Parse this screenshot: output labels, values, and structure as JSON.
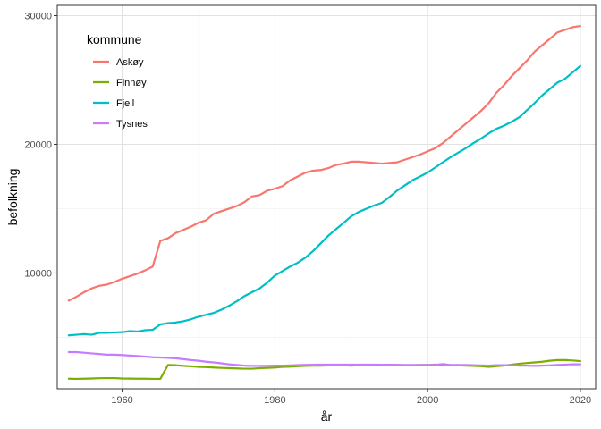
{
  "chart_data": {
    "type": "line",
    "title": "",
    "xlabel": "år",
    "ylabel": "befolkning",
    "xlim": [
      1951.5,
      2022.0
    ],
    "ylim": [
      1000,
      30800
    ],
    "x_ticks": [
      1960,
      1980,
      2000,
      2020
    ],
    "x_tick_labels": [
      "1960",
      "1980",
      "2000",
      "2020"
    ],
    "y_ticks": [
      10000,
      20000,
      30000
    ],
    "y_tick_labels": [
      "10000",
      "20000",
      "30000"
    ],
    "grid": true,
    "legend": {
      "title": "kommune",
      "placement": "top-left (inside)"
    },
    "series": [
      {
        "name": "Askøy",
        "color": "#F8766D",
        "x": [
          1953,
          1954,
          1955,
          1956,
          1957,
          1958,
          1959,
          1960,
          1961,
          1962,
          1963,
          1964,
          1965,
          1966,
          1967,
          1968,
          1969,
          1970,
          1971,
          1972,
          1973,
          1974,
          1975,
          1976,
          1977,
          1978,
          1979,
          1980,
          1981,
          1982,
          1983,
          1984,
          1985,
          1986,
          1987,
          1988,
          1989,
          1990,
          1991,
          1992,
          1993,
          1994,
          1995,
          1996,
          1997,
          1998,
          1999,
          2000,
          2001,
          2002,
          2003,
          2004,
          2005,
          2006,
          2007,
          2008,
          2009,
          2010,
          2011,
          2012,
          2013,
          2014,
          2015,
          2016,
          2017,
          2018,
          2019,
          2020
        ],
        "values": [
          7850,
          8150,
          8500,
          8800,
          9000,
          9100,
          9300,
          9550,
          9750,
          9950,
          10200,
          10500,
          12500,
          12700,
          13100,
          13350,
          13600,
          13900,
          14100,
          14600,
          14800,
          15000,
          15200,
          15500,
          15950,
          16050,
          16400,
          16550,
          16750,
          17200,
          17500,
          17800,
          17950,
          18000,
          18150,
          18400,
          18500,
          18650,
          18650,
          18600,
          18550,
          18500,
          18550,
          18600,
          18800,
          19000,
          19200,
          19450,
          19700,
          20100,
          20600,
          21100,
          21600,
          22100,
          22600,
          23200,
          24000,
          24600,
          25300,
          25900,
          26500,
          27200,
          27700,
          28200,
          28700,
          28900,
          29100,
          29200
        ]
      },
      {
        "name": "Finnøy",
        "color": "#7CAE00",
        "x": [
          1953,
          1954,
          1955,
          1956,
          1957,
          1958,
          1959,
          1960,
          1961,
          1962,
          1963,
          1964,
          1965,
          1966,
          1967,
          1968,
          1969,
          1970,
          1971,
          1972,
          1973,
          1974,
          1975,
          1976,
          1977,
          1978,
          1979,
          1980,
          1981,
          1982,
          1983,
          1984,
          1985,
          1986,
          1987,
          1988,
          1989,
          1990,
          1991,
          1992,
          1993,
          1994,
          1995,
          1996,
          1997,
          1998,
          1999,
          2000,
          2001,
          2002,
          2003,
          2004,
          2005,
          2006,
          2007,
          2008,
          2009,
          2010,
          2011,
          2012,
          2013,
          2014,
          2015,
          2016,
          2017,
          2018,
          2019,
          2020
        ],
        "values": [
          1780,
          1770,
          1780,
          1800,
          1820,
          1830,
          1830,
          1800,
          1790,
          1780,
          1780,
          1770,
          1770,
          2850,
          2830,
          2780,
          2750,
          2700,
          2680,
          2650,
          2620,
          2600,
          2580,
          2560,
          2560,
          2600,
          2620,
          2650,
          2700,
          2720,
          2750,
          2780,
          2800,
          2800,
          2810,
          2820,
          2830,
          2800,
          2830,
          2850,
          2860,
          2860,
          2860,
          2850,
          2830,
          2830,
          2850,
          2850,
          2880,
          2850,
          2830,
          2820,
          2800,
          2780,
          2750,
          2700,
          2750,
          2800,
          2880,
          2950,
          3000,
          3050,
          3100,
          3180,
          3230,
          3230,
          3200,
          3150
        ]
      },
      {
        "name": "Fjell",
        "color": "#00BFC4",
        "x": [
          1953,
          1954,
          1955,
          1956,
          1957,
          1958,
          1959,
          1960,
          1961,
          1962,
          1963,
          1964,
          1965,
          1966,
          1967,
          1968,
          1969,
          1970,
          1971,
          1972,
          1973,
          1974,
          1975,
          1976,
          1977,
          1978,
          1979,
          1980,
          1981,
          1982,
          1983,
          1984,
          1985,
          1986,
          1987,
          1988,
          1989,
          1990,
          1991,
          1992,
          1993,
          1994,
          1995,
          1996,
          1997,
          1998,
          1999,
          2000,
          2001,
          2002,
          2003,
          2004,
          2005,
          2006,
          2007,
          2008,
          2009,
          2010,
          2011,
          2012,
          2013,
          2014,
          2015,
          2016,
          2017,
          2018,
          2019,
          2020
        ],
        "values": [
          5150,
          5200,
          5250,
          5200,
          5350,
          5350,
          5380,
          5400,
          5480,
          5450,
          5550,
          5580,
          6000,
          6100,
          6150,
          6250,
          6400,
          6600,
          6750,
          6900,
          7150,
          7450,
          7800,
          8200,
          8500,
          8800,
          9250,
          9800,
          10150,
          10500,
          10800,
          11200,
          11700,
          12300,
          12900,
          13400,
          13900,
          14400,
          14750,
          15000,
          15250,
          15450,
          15900,
          16400,
          16800,
          17200,
          17500,
          17800,
          18200,
          18600,
          19000,
          19350,
          19700,
          20100,
          20450,
          20850,
          21200,
          21450,
          21750,
          22100,
          22650,
          23200,
          23800,
          24300,
          24800,
          25100,
          25600,
          26100
        ]
      },
      {
        "name": "Tysnes",
        "color": "#C77CFF",
        "x": [
          1953,
          1954,
          1955,
          1956,
          1957,
          1958,
          1959,
          1960,
          1961,
          1962,
          1963,
          1964,
          1965,
          1966,
          1967,
          1968,
          1969,
          1970,
          1971,
          1972,
          1973,
          1974,
          1975,
          1976,
          1977,
          1978,
          1979,
          1980,
          1981,
          1982,
          1983,
          1984,
          1985,
          1986,
          1987,
          1988,
          1989,
          1990,
          1991,
          1992,
          1993,
          1994,
          1995,
          1996,
          1997,
          1998,
          1999,
          2000,
          2001,
          2002,
          2003,
          2004,
          2005,
          2006,
          2007,
          2008,
          2009,
          2010,
          2011,
          2012,
          2013,
          2014,
          2015,
          2016,
          2017,
          2018,
          2019,
          2020
        ],
        "values": [
          3850,
          3850,
          3800,
          3750,
          3700,
          3650,
          3650,
          3620,
          3580,
          3550,
          3500,
          3450,
          3430,
          3400,
          3370,
          3300,
          3230,
          3180,
          3100,
          3050,
          2980,
          2900,
          2850,
          2800,
          2780,
          2780,
          2780,
          2800,
          2800,
          2820,
          2840,
          2860,
          2870,
          2880,
          2880,
          2880,
          2880,
          2880,
          2880,
          2880,
          2880,
          2870,
          2870,
          2860,
          2850,
          2850,
          2850,
          2850,
          2860,
          2920,
          2850,
          2850,
          2850,
          2830,
          2820,
          2800,
          2830,
          2830,
          2830,
          2800,
          2800,
          2780,
          2800,
          2820,
          2850,
          2880,
          2900,
          2900
        ]
      }
    ]
  }
}
